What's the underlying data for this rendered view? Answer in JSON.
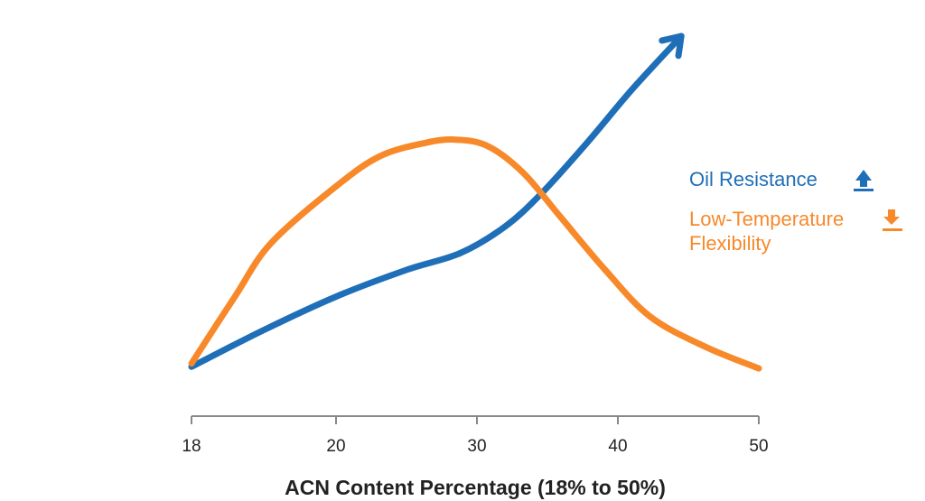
{
  "chart_data": {
    "type": "line",
    "title": "",
    "xlabel": "ACN Content Percentage (18% to 50%)",
    "ylabel": "",
    "x_ticks": [
      18,
      20,
      30,
      40,
      50
    ],
    "x_scale": "tick positions evenly spaced (18, 20, 30, 40, 50)",
    "y_axis": "none (relative qualitative scale 0-100)",
    "grid": false,
    "legend_placement": "right",
    "series": [
      {
        "name": "Oil Resistance",
        "legend_icon": "arrow-up-icon",
        "color": "#1f6fb8",
        "end_marker": "arrow",
        "points": [
          [
            18,
            1
          ],
          [
            19,
            12
          ],
          [
            20,
            22
          ],
          [
            25,
            30
          ],
          [
            28.8,
            35
          ],
          [
            32,
            43
          ],
          [
            34.6,
            53
          ],
          [
            37.8,
            68
          ],
          [
            41,
            84
          ],
          [
            44.5,
            100
          ]
        ]
      },
      {
        "name_lines": [
          "Low-Temperature",
          "Flexibility"
        ],
        "legend_icon": "arrow-down-icon",
        "color": "#f7892a",
        "points": [
          [
            18,
            2
          ],
          [
            18.6,
            22
          ],
          [
            19.1,
            38
          ],
          [
            20,
            55
          ],
          [
            23.1,
            64
          ],
          [
            26.3,
            68
          ],
          [
            28.5,
            69
          ],
          [
            30.8,
            67
          ],
          [
            33.3,
            59
          ],
          [
            35.9,
            46
          ],
          [
            39.1,
            30
          ],
          [
            42.3,
            16
          ],
          [
            46.2,
            7
          ],
          [
            50,
            0.5
          ]
        ]
      }
    ]
  }
}
